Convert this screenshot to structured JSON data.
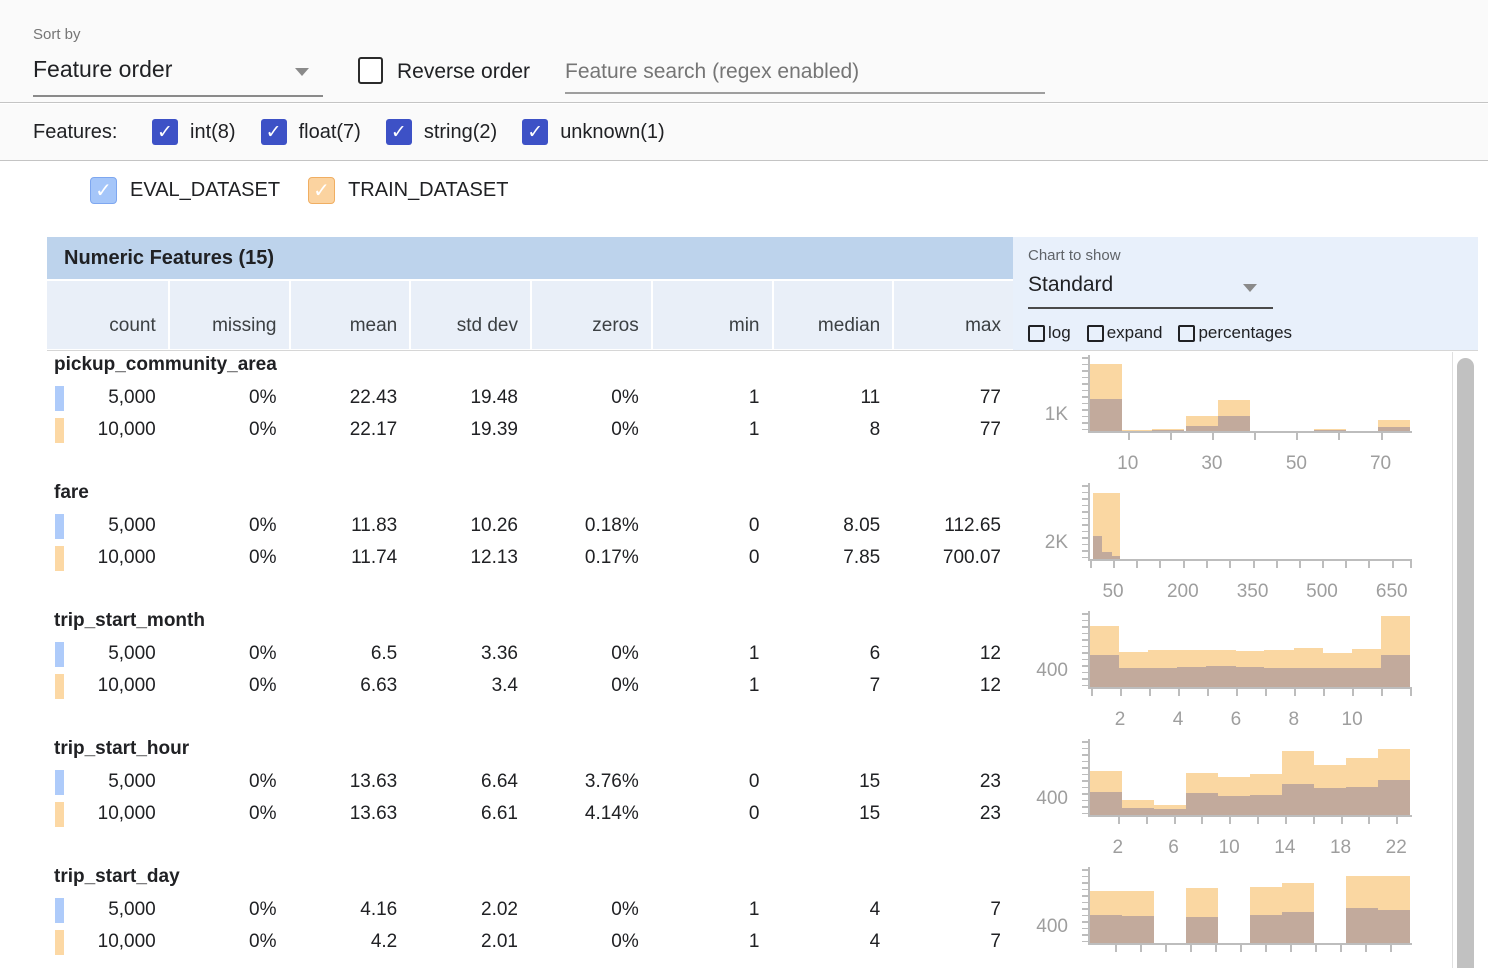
{
  "sort_bar": {
    "sort_by_label": "Sort by",
    "sort_value": "Feature order",
    "reverse_label": "Reverse order",
    "search_placeholder": "Feature search (regex enabled)"
  },
  "features_bar": {
    "label": "Features:",
    "filters": [
      {
        "label": "int(8)",
        "checked": true
      },
      {
        "label": "float(7)",
        "checked": true
      },
      {
        "label": "string(2)",
        "checked": true
      },
      {
        "label": "unknown(1)",
        "checked": true
      }
    ]
  },
  "datasets": [
    {
      "name": "EVAL_DATASET",
      "checked": true,
      "color": "#a5c6f9"
    },
    {
      "name": "TRAIN_DATASET",
      "checked": true,
      "color": "#fbd3a0"
    }
  ],
  "chart_panel": {
    "label": "Chart to show",
    "selected": "Standard",
    "options": [
      {
        "label": "log",
        "checked": false
      },
      {
        "label": "expand",
        "checked": false
      },
      {
        "label": "percentages",
        "checked": false
      }
    ]
  },
  "table": {
    "title": "Numeric Features (15)",
    "columns": [
      "count",
      "missing",
      "mean",
      "std dev",
      "zeros",
      "min",
      "median",
      "max"
    ],
    "features": [
      {
        "name": "pickup_community_area",
        "rows": [
          {
            "dataset": "EVAL_DATASET",
            "values": [
              "5,000",
              "0%",
              "22.43",
              "19.48",
              "0%",
              "1",
              "11",
              "77"
            ]
          },
          {
            "dataset": "TRAIN_DATASET",
            "values": [
              "10,000",
              "0%",
              "22.17",
              "19.39",
              "0%",
              "1",
              "8",
              "77"
            ]
          }
        ]
      },
      {
        "name": "fare",
        "rows": [
          {
            "dataset": "EVAL_DATASET",
            "values": [
              "5,000",
              "0%",
              "11.83",
              "10.26",
              "0.18%",
              "0",
              "8.05",
              "112.65"
            ]
          },
          {
            "dataset": "TRAIN_DATASET",
            "values": [
              "10,000",
              "0%",
              "11.74",
              "12.13",
              "0.17%",
              "0",
              "7.85",
              "700.07"
            ]
          }
        ]
      },
      {
        "name": "trip_start_month",
        "rows": [
          {
            "dataset": "EVAL_DATASET",
            "values": [
              "5,000",
              "0%",
              "6.5",
              "3.36",
              "0%",
              "1",
              "6",
              "12"
            ]
          },
          {
            "dataset": "TRAIN_DATASET",
            "values": [
              "10,000",
              "0%",
              "6.63",
              "3.4",
              "0%",
              "1",
              "7",
              "12"
            ]
          }
        ]
      },
      {
        "name": "trip_start_hour",
        "rows": [
          {
            "dataset": "EVAL_DATASET",
            "values": [
              "5,000",
              "0%",
              "13.63",
              "6.64",
              "3.76%",
              "0",
              "15",
              "23"
            ]
          },
          {
            "dataset": "TRAIN_DATASET",
            "values": [
              "10,000",
              "0%",
              "13.63",
              "6.61",
              "4.14%",
              "0",
              "15",
              "23"
            ]
          }
        ]
      },
      {
        "name": "trip_start_day",
        "rows": [
          {
            "dataset": "EVAL_DATASET",
            "values": [
              "5,000",
              "0%",
              "4.16",
              "2.02",
              "0%",
              "1",
              "4",
              "7"
            ]
          },
          {
            "dataset": "TRAIN_DATASET",
            "values": [
              "10,000",
              "0%",
              "4.2",
              "2.01",
              "0%",
              "1",
              "4",
              "7"
            ]
          }
        ]
      }
    ]
  },
  "chart_data": [
    {
      "feature": "pickup_community_area",
      "type": "histogram",
      "ylabel": "1K",
      "series": [
        "TRAIN_DATASET",
        "EVAL_DATASET_overlap"
      ],
      "xtick_labels": [
        {
          "label": "10",
          "f": 0.118
        },
        {
          "label": "30",
          "f": 0.381
        },
        {
          "label": "50",
          "f": 0.645
        },
        {
          "label": "70",
          "f": 0.908
        }
      ],
      "minor_ticks": [
        0.25,
        0.513,
        0.776
      ],
      "bars": [
        {
          "x0": 0.0,
          "x1": 0.1,
          "train": 0.89,
          "overlap": 0.43
        },
        {
          "x0": 0.1,
          "x1": 0.195,
          "train": 0.01,
          "overlap": 0.005
        },
        {
          "x0": 0.195,
          "x1": 0.295,
          "train": 0.028,
          "overlap": 0.012
        },
        {
          "x0": 0.3,
          "x1": 0.4,
          "train": 0.2,
          "overlap": 0.065
        },
        {
          "x0": 0.4,
          "x1": 0.5,
          "train": 0.42,
          "overlap": 0.2
        },
        {
          "x0": 0.5,
          "x1": 0.6,
          "train": 0.006,
          "overlap": 0.003
        },
        {
          "x0": 0.7,
          "x1": 0.8,
          "train": 0.026,
          "overlap": 0.01
        },
        {
          "x0": 0.9,
          "x1": 1.0,
          "train": 0.145,
          "overlap": 0.055
        }
      ]
    },
    {
      "feature": "fare",
      "type": "histogram",
      "ylabel": "2K",
      "series": [
        "TRAIN_DATASET",
        "EVAL_DATASET_overlap"
      ],
      "xtick_labels": [
        {
          "label": "50",
          "f": 0.072
        },
        {
          "label": "200",
          "f": 0.29
        },
        {
          "label": "350",
          "f": 0.508
        },
        {
          "label": "500",
          "f": 0.725
        },
        {
          "label": "650",
          "f": 0.943
        }
      ],
      "minor_ticks": [
        0.0,
        0.145,
        0.217,
        0.363,
        0.435,
        0.58,
        0.653,
        0.798,
        0.87,
        1.0
      ],
      "bars": [
        {
          "x0": 0.008,
          "x1": 0.095,
          "train": 0.88,
          "overlap": 0.045
        },
        {
          "x0": 0.008,
          "x1": 0.038,
          "train": 0,
          "overlap": 0.31
        },
        {
          "x0": 0.038,
          "x1": 0.068,
          "train": 0,
          "overlap": 0.1
        }
      ]
    },
    {
      "feature": "trip_start_month",
      "type": "histogram",
      "ylabel": "400",
      "series": [
        "TRAIN_DATASET",
        "EVAL_DATASET_overlap"
      ],
      "xtick_labels": [
        {
          "label": "2",
          "f": 0.094
        },
        {
          "label": "4",
          "f": 0.275
        },
        {
          "label": "6",
          "f": 0.456
        },
        {
          "label": "8",
          "f": 0.637
        },
        {
          "label": "10",
          "f": 0.819
        }
      ],
      "minor_ticks": [
        0.003,
        0.184,
        0.366,
        0.547,
        0.728,
        0.909,
        0.999
      ],
      "bars": [
        {
          "x0": 0.0,
          "x1": 0.091,
          "train": 0.81,
          "overlap": 0.43
        },
        {
          "x0": 0.091,
          "x1": 0.182,
          "train": 0.47,
          "overlap": 0.25
        },
        {
          "x0": 0.182,
          "x1": 0.273,
          "train": 0.49,
          "overlap": 0.26
        },
        {
          "x0": 0.273,
          "x1": 0.364,
          "train": 0.5,
          "overlap": 0.27
        },
        {
          "x0": 0.364,
          "x1": 0.455,
          "train": 0.49,
          "overlap": 0.28
        },
        {
          "x0": 0.455,
          "x1": 0.545,
          "train": 0.48,
          "overlap": 0.27
        },
        {
          "x0": 0.545,
          "x1": 0.636,
          "train": 0.49,
          "overlap": 0.25
        },
        {
          "x0": 0.636,
          "x1": 0.727,
          "train": 0.52,
          "overlap": 0.26
        },
        {
          "x0": 0.727,
          "x1": 0.818,
          "train": 0.45,
          "overlap": 0.26
        },
        {
          "x0": 0.818,
          "x1": 0.909,
          "train": 0.51,
          "overlap": 0.26
        },
        {
          "x0": 0.909,
          "x1": 1.0,
          "train": 0.95,
          "overlap": 0.43
        }
      ]
    },
    {
      "feature": "trip_start_hour",
      "type": "histogram",
      "ylabel": "400",
      "series": [
        "TRAIN_DATASET",
        "EVAL_DATASET_overlap"
      ],
      "xtick_labels": [
        {
          "label": "2",
          "f": 0.087
        },
        {
          "label": "6",
          "f": 0.261
        },
        {
          "label": "10",
          "f": 0.435
        },
        {
          "label": "14",
          "f": 0.609
        },
        {
          "label": "18",
          "f": 0.783
        },
        {
          "label": "22",
          "f": 0.957
        }
      ],
      "minor_ticks": [
        0.174,
        0.348,
        0.522,
        0.696,
        0.87
      ],
      "bars": [
        {
          "x0": 0.0,
          "x1": 0.1,
          "train": 0.59,
          "overlap": 0.31
        },
        {
          "x0": 0.1,
          "x1": 0.2,
          "train": 0.2,
          "overlap": 0.1
        },
        {
          "x0": 0.2,
          "x1": 0.3,
          "train": 0.13,
          "overlap": 0.08
        },
        {
          "x0": 0.3,
          "x1": 0.4,
          "train": 0.56,
          "overlap": 0.29
        },
        {
          "x0": 0.4,
          "x1": 0.5,
          "train": 0.51,
          "overlap": 0.26
        },
        {
          "x0": 0.5,
          "x1": 0.6,
          "train": 0.55,
          "overlap": 0.27
        },
        {
          "x0": 0.6,
          "x1": 0.7,
          "train": 0.85,
          "overlap": 0.41
        },
        {
          "x0": 0.7,
          "x1": 0.8,
          "train": 0.67,
          "overlap": 0.36
        },
        {
          "x0": 0.8,
          "x1": 0.9,
          "train": 0.76,
          "overlap": 0.38
        },
        {
          "x0": 0.9,
          "x1": 1.0,
          "train": 0.88,
          "overlap": 0.47
        }
      ]
    },
    {
      "feature": "trip_start_day",
      "type": "histogram",
      "ylabel": "400",
      "series": [
        "TRAIN_DATASET",
        "EVAL_DATASET_overlap"
      ],
      "xtick_labels": [],
      "minor_ticks": [
        0.078,
        0.156,
        0.234,
        0.312,
        0.39,
        0.468,
        0.546,
        0.624,
        0.702,
        0.78,
        0.858,
        0.936
      ],
      "bars": [
        {
          "x0": 0.0,
          "x1": 0.1,
          "train": 0.69,
          "overlap": 0.37
        },
        {
          "x0": 0.1,
          "x1": 0.2,
          "train": 0.69,
          "overlap": 0.36
        },
        {
          "x0": 0.3,
          "x1": 0.4,
          "train": 0.73,
          "overlap": 0.35
        },
        {
          "x0": 0.5,
          "x1": 0.6,
          "train": 0.75,
          "overlap": 0.37
        },
        {
          "x0": 0.6,
          "x1": 0.7,
          "train": 0.8,
          "overlap": 0.41
        },
        {
          "x0": 0.8,
          "x1": 0.9,
          "train": 0.89,
          "overlap": 0.47
        },
        {
          "x0": 0.9,
          "x1": 1.0,
          "train": 0.89,
          "overlap": 0.44
        }
      ]
    }
  ],
  "colors": {
    "accent_indigo": "#3d51c6",
    "eval_blue": "#a5c6f9",
    "eval_marker": "#aecbfa",
    "train_orange": "#fbd3a0",
    "train_marker": "#fcd8a4",
    "table_title_bg": "#bdd3ec",
    "table_header_bg": "#e9eff8",
    "chart_panel_bg": "#e8f0fb",
    "hist_train": "#fad7a2",
    "hist_overlap": "#c2aa9c",
    "axis": "#bdbdbd"
  }
}
